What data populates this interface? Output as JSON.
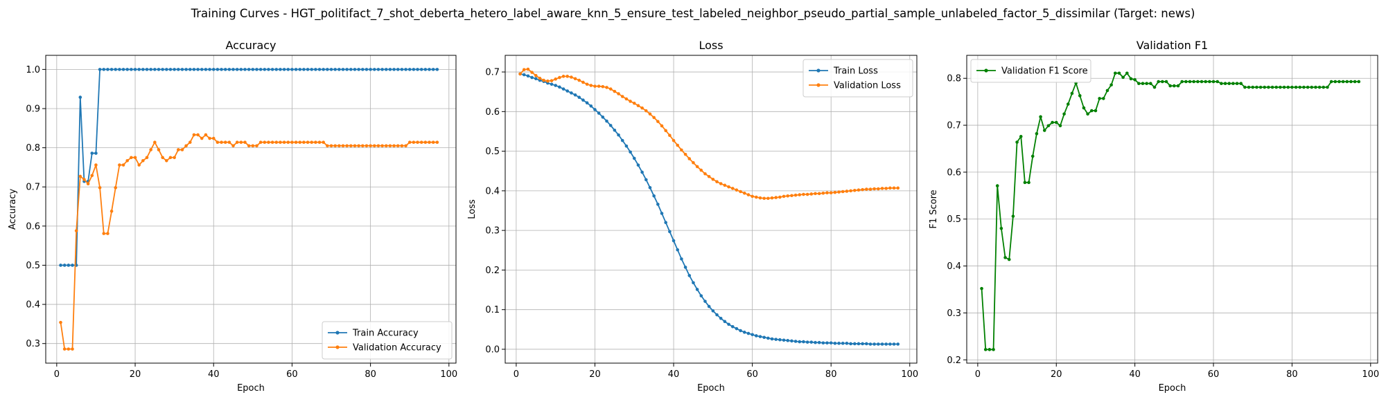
{
  "suptitle": "Training Curves - HGT_politifact_7_shot_deberta_hetero_label_aware_knn_5_ensure_test_labeled_neighbor_pseudo_partial_sample_unlabeled_factor_5_dissimilar (Target: news)",
  "chart_data": [
    {
      "type": "line",
      "title": "Accuracy",
      "xlabel": "Epoch",
      "ylabel": "Accuracy",
      "xlim": [
        -2.8,
        101.8
      ],
      "ylim": [
        0.25,
        1.036
      ],
      "xticks": [
        0,
        20,
        40,
        60,
        80,
        100
      ],
      "yticks": [
        0.3,
        0.4,
        0.5,
        0.6,
        0.7,
        0.8,
        0.9,
        1.0
      ],
      "ytick_labels": [
        "0.3",
        "0.4",
        "0.5",
        "0.6",
        "0.7",
        "0.8",
        "0.9",
        "1.0"
      ],
      "grid": true,
      "legend": "lower-right",
      "series": [
        {
          "name": "Train Accuracy",
          "color": "#1f77b4",
          "x_start": 1,
          "values": [
            0.5,
            0.5,
            0.5,
            0.5,
            0.5,
            0.929,
            0.714,
            0.714,
            0.786,
            0.786,
            1.0,
            1.0,
            1.0,
            1.0,
            1.0,
            1.0,
            1.0,
            1.0,
            1.0,
            1.0,
            1.0,
            1.0,
            1.0,
            1.0,
            1.0,
            1.0,
            1.0,
            1.0,
            1.0,
            1.0,
            1.0,
            1.0,
            1.0,
            1.0,
            1.0,
            1.0,
            1.0,
            1.0,
            1.0,
            1.0,
            1.0,
            1.0,
            1.0,
            1.0,
            1.0,
            1.0,
            1.0,
            1.0,
            1.0,
            1.0,
            1.0,
            1.0,
            1.0,
            1.0,
            1.0,
            1.0,
            1.0,
            1.0,
            1.0,
            1.0,
            1.0,
            1.0,
            1.0,
            1.0,
            1.0,
            1.0,
            1.0,
            1.0,
            1.0,
            1.0,
            1.0,
            1.0,
            1.0,
            1.0,
            1.0,
            1.0,
            1.0,
            1.0,
            1.0,
            1.0,
            1.0,
            1.0,
            1.0,
            1.0,
            1.0,
            1.0,
            1.0,
            1.0,
            1.0,
            1.0,
            1.0,
            1.0,
            1.0,
            1.0,
            1.0,
            1.0,
            1.0
          ]
        },
        {
          "name": "Validation Accuracy",
          "color": "#ff7f0e",
          "x_start": 1,
          "values": [
            0.354,
            0.286,
            0.286,
            0.286,
            0.588,
            0.727,
            0.719,
            0.708,
            0.729,
            0.756,
            0.698,
            0.581,
            0.581,
            0.638,
            0.698,
            0.756,
            0.756,
            0.767,
            0.775,
            0.775,
            0.756,
            0.767,
            0.775,
            0.795,
            0.814,
            0.795,
            0.775,
            0.767,
            0.775,
            0.775,
            0.795,
            0.795,
            0.805,
            0.814,
            0.833,
            0.833,
            0.824,
            0.833,
            0.824,
            0.824,
            0.814,
            0.814,
            0.814,
            0.814,
            0.805,
            0.814,
            0.814,
            0.814,
            0.805,
            0.805,
            0.805,
            0.814,
            0.814,
            0.814,
            0.814,
            0.814,
            0.814,
            0.814,
            0.814,
            0.814,
            0.814,
            0.814,
            0.814,
            0.814,
            0.814,
            0.814,
            0.814,
            0.814,
            0.805,
            0.805,
            0.805,
            0.805,
            0.805,
            0.805,
            0.805,
            0.805,
            0.805,
            0.805,
            0.805,
            0.805,
            0.805,
            0.805,
            0.805,
            0.805,
            0.805,
            0.805,
            0.805,
            0.805,
            0.805,
            0.814,
            0.814,
            0.814,
            0.814,
            0.814,
            0.814,
            0.814,
            0.814
          ]
        }
      ]
    },
    {
      "type": "line",
      "title": "Loss",
      "xlabel": "Epoch",
      "ylabel": "Loss",
      "xlim": [
        -2.8,
        101.8
      ],
      "ylim": [
        -0.035,
        0.742
      ],
      "xticks": [
        0,
        20,
        40,
        60,
        80,
        100
      ],
      "yticks": [
        0.0,
        0.1,
        0.2,
        0.3,
        0.4,
        0.5,
        0.6,
        0.7
      ],
      "ytick_labels": [
        "0.0",
        "0.1",
        "0.2",
        "0.3",
        "0.4",
        "0.5",
        "0.6",
        "0.7"
      ],
      "grid": true,
      "legend": "upper-right",
      "series": [
        {
          "name": "Train Loss",
          "color": "#1f77b4",
          "x_start": 1,
          "values": [
            0.695,
            0.693,
            0.69,
            0.686,
            0.683,
            0.679,
            0.676,
            0.672,
            0.669,
            0.666,
            0.662,
            0.657,
            0.652,
            0.647,
            0.642,
            0.636,
            0.629,
            0.622,
            0.614,
            0.605,
            0.596,
            0.586,
            0.576,
            0.565,
            0.553,
            0.541,
            0.527,
            0.513,
            0.498,
            0.482,
            0.465,
            0.447,
            0.428,
            0.408,
            0.387,
            0.366,
            0.343,
            0.32,
            0.297,
            0.274,
            0.251,
            0.228,
            0.207,
            0.186,
            0.168,
            0.151,
            0.135,
            0.121,
            0.108,
            0.097,
            0.087,
            0.078,
            0.07,
            0.063,
            0.057,
            0.052,
            0.047,
            0.043,
            0.04,
            0.037,
            0.034,
            0.032,
            0.03,
            0.028,
            0.026,
            0.025,
            0.024,
            0.023,
            0.022,
            0.021,
            0.02,
            0.019,
            0.019,
            0.018,
            0.018,
            0.017,
            0.017,
            0.016,
            0.016,
            0.016,
            0.015,
            0.015,
            0.015,
            0.015,
            0.014,
            0.014,
            0.014,
            0.014,
            0.014,
            0.013,
            0.013,
            0.013,
            0.013,
            0.013,
            0.013,
            0.013,
            0.013
          ]
        },
        {
          "name": "Validation Loss",
          "color": "#ff7f0e",
          "x_start": 1,
          "values": [
            0.695,
            0.706,
            0.707,
            0.699,
            0.691,
            0.684,
            0.679,
            0.677,
            0.678,
            0.682,
            0.686,
            0.689,
            0.689,
            0.687,
            0.683,
            0.679,
            0.674,
            0.669,
            0.666,
            0.664,
            0.664,
            0.663,
            0.661,
            0.657,
            0.651,
            0.645,
            0.638,
            0.632,
            0.626,
            0.621,
            0.615,
            0.609,
            0.602,
            0.594,
            0.585,
            0.575,
            0.564,
            0.552,
            0.54,
            0.527,
            0.515,
            0.503,
            0.492,
            0.481,
            0.471,
            0.461,
            0.452,
            0.443,
            0.436,
            0.429,
            0.423,
            0.418,
            0.414,
            0.41,
            0.406,
            0.402,
            0.398,
            0.394,
            0.39,
            0.386,
            0.384,
            0.382,
            0.381,
            0.381,
            0.382,
            0.383,
            0.384,
            0.386,
            0.387,
            0.388,
            0.389,
            0.39,
            0.391,
            0.391,
            0.392,
            0.393,
            0.393,
            0.394,
            0.395,
            0.395,
            0.396,
            0.397,
            0.398,
            0.399,
            0.4,
            0.401,
            0.402,
            0.403,
            0.404,
            0.404,
            0.405,
            0.405,
            0.406,
            0.406,
            0.407,
            0.407,
            0.407
          ]
        }
      ]
    },
    {
      "type": "line",
      "title": "Validation F1",
      "xlabel": "Epoch",
      "ylabel": "F1 Score",
      "xlim": [
        -2.8,
        101.8
      ],
      "ylim": [
        0.193,
        0.849
      ],
      "xticks": [
        0,
        20,
        40,
        60,
        80,
        100
      ],
      "yticks": [
        0.2,
        0.3,
        0.4,
        0.5,
        0.6,
        0.7,
        0.8
      ],
      "ytick_labels": [
        "0.2",
        "0.3",
        "0.4",
        "0.5",
        "0.6",
        "0.7",
        "0.8"
      ],
      "grid": true,
      "legend": "upper-left",
      "series": [
        {
          "name": "Validation F1 Score",
          "color": "#008000",
          "x_start": 1,
          "values": [
            0.352,
            0.222,
            0.222,
            0.222,
            0.571,
            0.48,
            0.418,
            0.414,
            0.506,
            0.664,
            0.676,
            0.578,
            0.578,
            0.634,
            0.682,
            0.718,
            0.689,
            0.699,
            0.706,
            0.706,
            0.699,
            0.724,
            0.745,
            0.768,
            0.79,
            0.763,
            0.737,
            0.724,
            0.731,
            0.731,
            0.757,
            0.757,
            0.774,
            0.786,
            0.811,
            0.811,
            0.802,
            0.811,
            0.799,
            0.797,
            0.789,
            0.789,
            0.789,
            0.789,
            0.781,
            0.793,
            0.793,
            0.793,
            0.784,
            0.784,
            0.784,
            0.793,
            0.793,
            0.793,
            0.793,
            0.793,
            0.793,
            0.793,
            0.793,
            0.793,
            0.793,
            0.789,
            0.789,
            0.789,
            0.789,
            0.789,
            0.789,
            0.781,
            0.781,
            0.781,
            0.781,
            0.781,
            0.781,
            0.781,
            0.781,
            0.781,
            0.781,
            0.781,
            0.781,
            0.781,
            0.781,
            0.781,
            0.781,
            0.781,
            0.781,
            0.781,
            0.781,
            0.781,
            0.781,
            0.793,
            0.793,
            0.793,
            0.793,
            0.793,
            0.793,
            0.793,
            0.793
          ]
        }
      ]
    }
  ]
}
